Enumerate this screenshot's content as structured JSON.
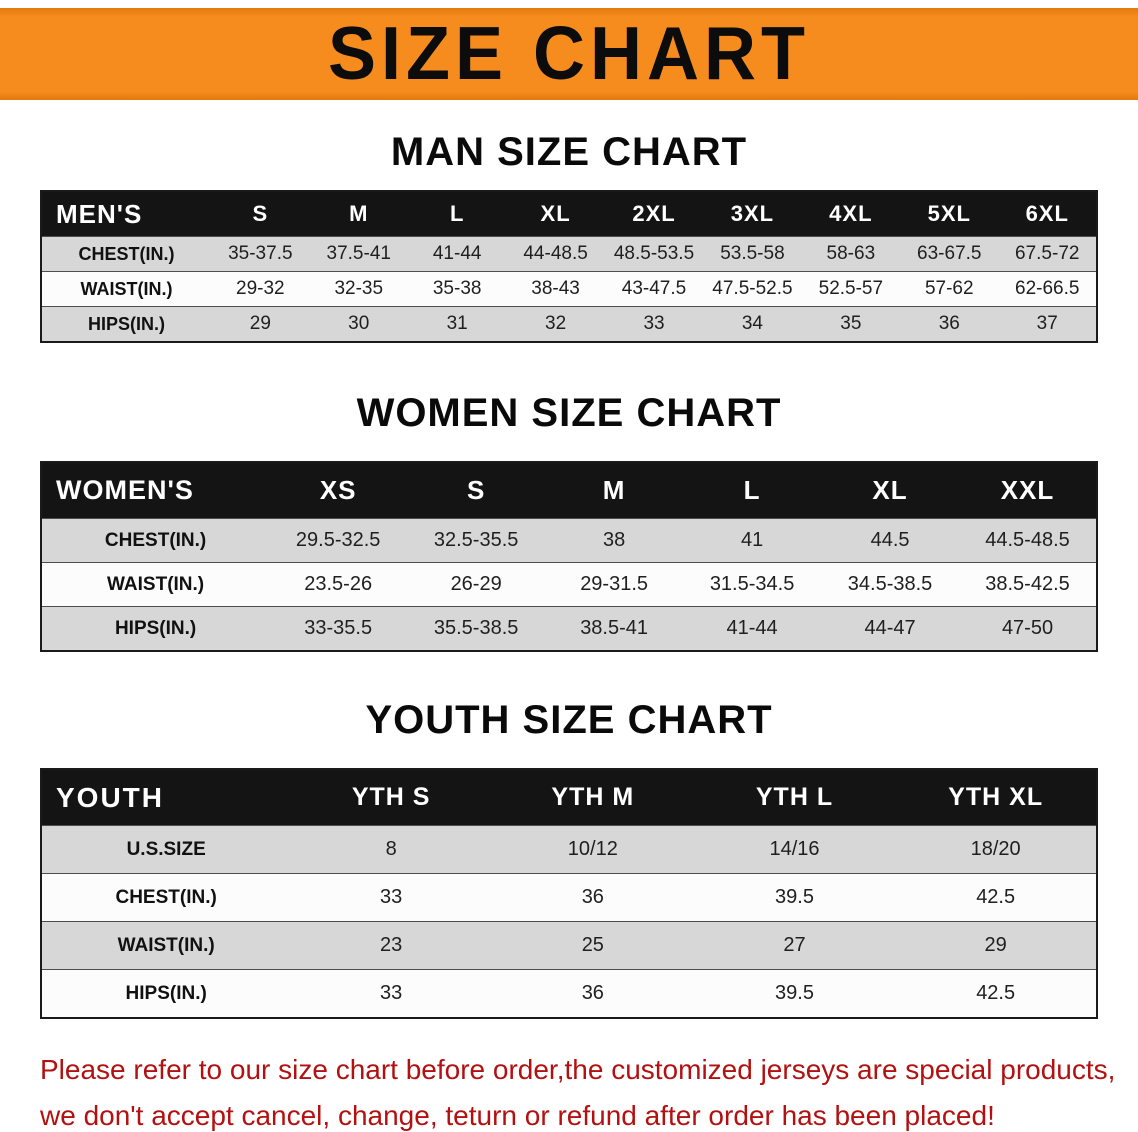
{
  "banner": {
    "title": "SIZE CHART"
  },
  "headings": {
    "men": "MAN SIZE CHART",
    "women": "WOMEN SIZE CHART",
    "youth": "YOUTH SIZE CHART"
  },
  "tables": {
    "men": {
      "header": [
        "MEN'S",
        "S",
        "M",
        "L",
        "XL",
        "2XL",
        "3XL",
        "4XL",
        "5XL",
        "6XL"
      ],
      "rows": [
        [
          "CHEST(IN.)",
          "35-37.5",
          "37.5-41",
          "41-44",
          "44-48.5",
          "48.5-53.5",
          "53.5-58",
          "58-63",
          "63-67.5",
          "67.5-72"
        ],
        [
          "WAIST(IN.)",
          "29-32",
          "32-35",
          "35-38",
          "38-43",
          "43-47.5",
          "47.5-52.5",
          "52.5-57",
          "57-62",
          "62-66.5"
        ],
        [
          "HIPS(IN.)",
          "29",
          "30",
          "31",
          "32",
          "33",
          "34",
          "35",
          "36",
          "37"
        ]
      ]
    },
    "women": {
      "header": [
        "WOMEN'S",
        "XS",
        "S",
        "M",
        "L",
        "XL",
        "XXL"
      ],
      "rows": [
        [
          "CHEST(IN.)",
          "29.5-32.5",
          "32.5-35.5",
          "38",
          "41",
          "44.5",
          "44.5-48.5"
        ],
        [
          "WAIST(IN.)",
          "23.5-26",
          "26-29",
          "29-31.5",
          "31.5-34.5",
          "34.5-38.5",
          "38.5-42.5"
        ],
        [
          "HIPS(IN.)",
          "33-35.5",
          "35.5-38.5",
          "38.5-41",
          "41-44",
          "44-47",
          "47-50"
        ]
      ]
    },
    "youth": {
      "header": [
        "YOUTH",
        "YTH S",
        "YTH M",
        "YTH L",
        "YTH XL"
      ],
      "rows": [
        [
          "U.S.SIZE",
          "8",
          "10/12",
          "14/16",
          "18/20"
        ],
        [
          "CHEST(IN.)",
          "33",
          "36",
          "39.5",
          "42.5"
        ],
        [
          "WAIST(IN.)",
          "23",
          "25",
          "27",
          "29"
        ],
        [
          "HIPS(IN.)",
          "33",
          "36",
          "39.5",
          "42.5"
        ]
      ]
    }
  },
  "disclaimer": {
    "line1": "Please refer to our size chart before order,the customized jerseys are special products,",
    "line2": "we don't accept cancel, change, teturn or refund after order has been placed!"
  },
  "colors": {
    "banner_orange": "#f78c1e",
    "header_black": "#141414",
    "row_gray": "#d7d7d7",
    "row_white": "#fcfcfc",
    "disclaimer_red": "#b31111"
  }
}
